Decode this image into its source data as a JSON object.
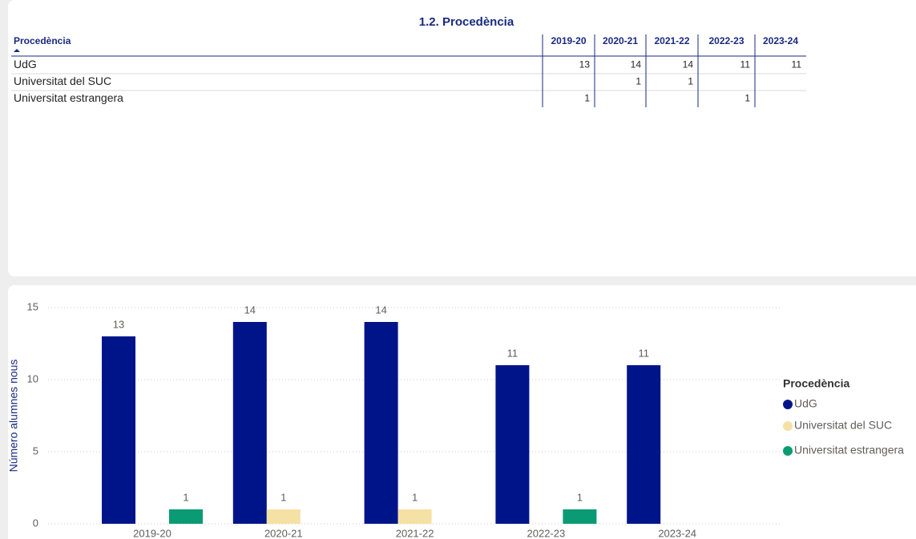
{
  "table": {
    "title": "1.2. Procedència",
    "columns": [
      "Procedència",
      "2019-20",
      "2020-21",
      "2021-22",
      "2022-23",
      "2023-24"
    ],
    "rows": [
      [
        "UdG",
        "13",
        "14",
        "14",
        "11",
        "11"
      ],
      [
        "Universitat del SUC",
        null,
        "1",
        "1",
        null,
        null
      ],
      [
        "Universitat estrangera",
        "1",
        null,
        null,
        "1",
        null
      ]
    ]
  },
  "chart_data": {
    "type": "bar",
    "categories": [
      "2019-20",
      "2020-21",
      "2021-22",
      "2022-23",
      "2023-24"
    ],
    "series": [
      {
        "name": "UdG",
        "color": "#00148a",
        "values": [
          13,
          14,
          14,
          11,
          11
        ]
      },
      {
        "name": "Universitat del SUC",
        "color": "#f5e1a4",
        "values": [
          null,
          1,
          1,
          null,
          null
        ]
      },
      {
        "name": "Universitat estrangera",
        "color": "#0a9b74",
        "values": [
          1,
          null,
          null,
          1,
          null
        ]
      }
    ],
    "ylabel": "Número alumnes nous",
    "ylim": [
      0,
      15
    ],
    "yticks": [
      0,
      5,
      10,
      15
    ],
    "grid": true,
    "legend_title": "Procedència",
    "legend": "right"
  }
}
